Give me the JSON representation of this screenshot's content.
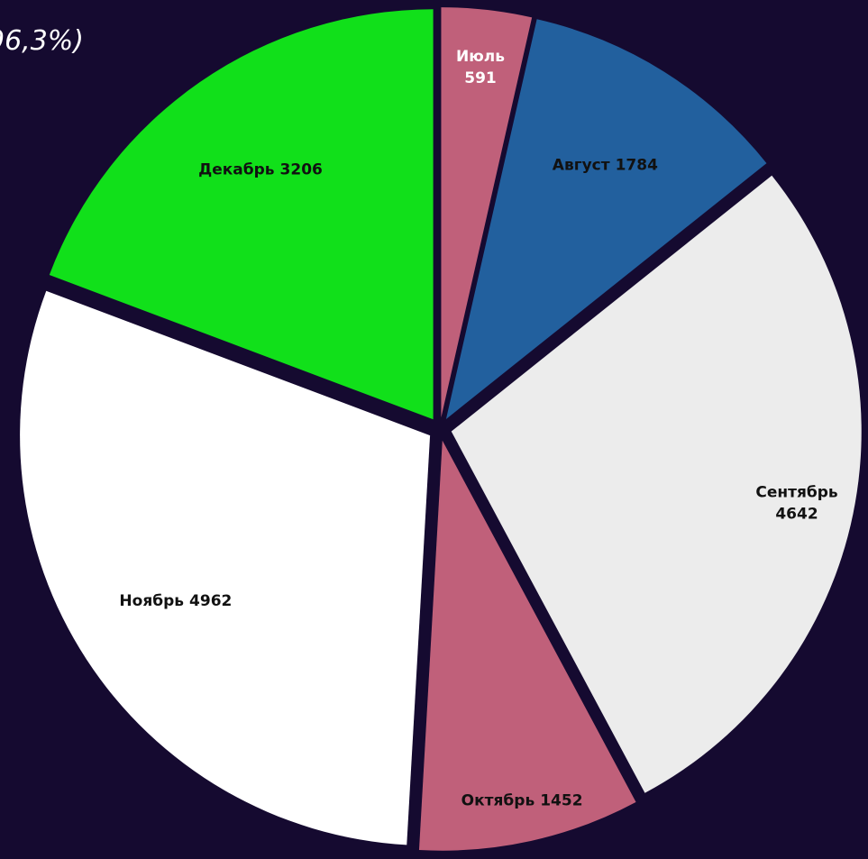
{
  "chart_data": {
    "type": "pie",
    "annotation": "96,3%)",
    "categories": [
      "Июль",
      "Август",
      "Сентябрь",
      "Октябрь",
      "Ноябрь",
      "Декабрь"
    ],
    "values": [
      591,
      1784,
      4642,
      1452,
      4962,
      3206
    ],
    "colors": [
      "#c0607a",
      "#22609e",
      "#ececec",
      "#c0607a",
      "#ffffff",
      "#11e01a"
    ]
  }
}
